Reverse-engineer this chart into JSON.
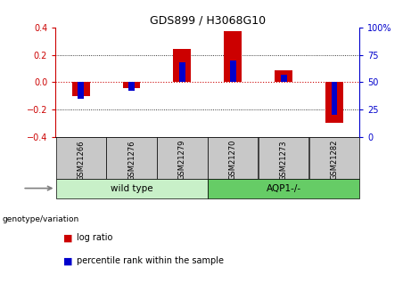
{
  "title": "GDS899 / H3068G10",
  "samples": [
    "GSM21266",
    "GSM21276",
    "GSM21279",
    "GSM21270",
    "GSM21273",
    "GSM21282"
  ],
  "log_ratio": [
    -0.1,
    -0.04,
    0.245,
    0.375,
    0.085,
    -0.295
  ],
  "percentile_rank": [
    35,
    42,
    68,
    70,
    57,
    20
  ],
  "groups": [
    {
      "label": "wild type",
      "indices": [
        0,
        1,
        2
      ],
      "color": "#c8f0c8"
    },
    {
      "label": "AQP1-/-",
      "indices": [
        3,
        4,
        5
      ],
      "color": "#66cc66"
    }
  ],
  "ylim_left": [
    -0.4,
    0.4
  ],
  "ylim_right": [
    0,
    100
  ],
  "yticks_left": [
    -0.4,
    -0.2,
    0.0,
    0.2,
    0.4
  ],
  "yticks_right": [
    0,
    25,
    50,
    75,
    100
  ],
  "bar_color_red": "#cc0000",
  "bar_color_blue": "#0000cc",
  "red_bar_width": 0.35,
  "blue_bar_width": 0.12,
  "hline_color": "#cc0000",
  "grid_color": "black",
  "label_log_ratio": "log ratio",
  "label_percentile": "percentile rank within the sample",
  "genotype_label": "genotype/variation",
  "sample_box_color": "#c8c8c8"
}
